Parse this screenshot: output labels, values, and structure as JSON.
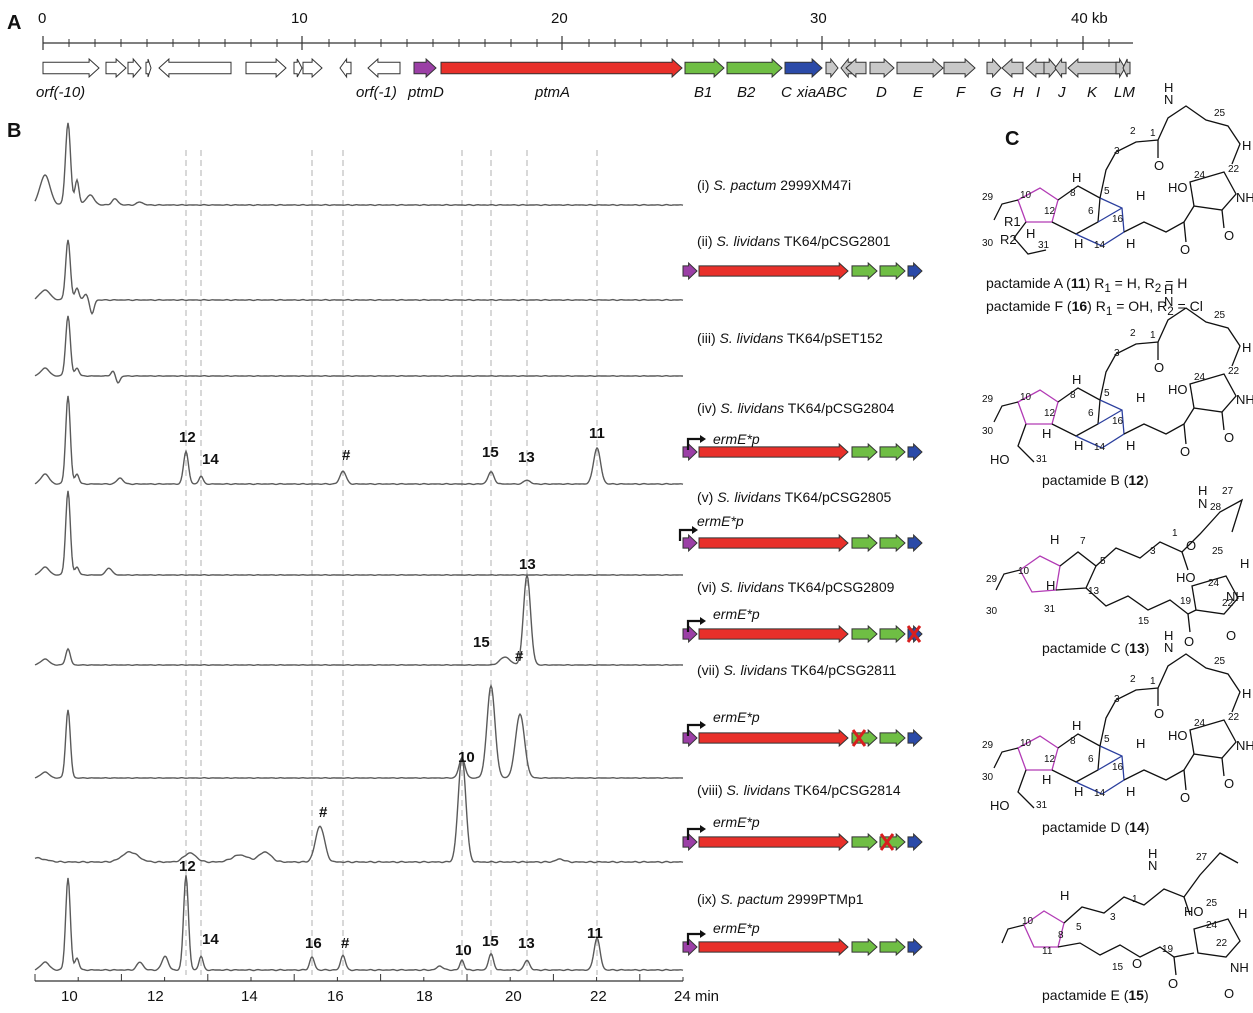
{
  "panels": {
    "a": "A",
    "b": "B",
    "c": "C"
  },
  "scale": {
    "ticks": [
      "0",
      "10",
      "20",
      "30",
      "40 kb"
    ]
  },
  "genes": [
    {
      "label": "orf(-10)"
    },
    {
      "label": "orf(-1)"
    },
    {
      "label": "ptmD"
    },
    {
      "label": "ptmA"
    },
    {
      "label": "B1"
    },
    {
      "label": "B2"
    },
    {
      "label": "C"
    },
    {
      "label": "xiaABC"
    },
    {
      "label": "D"
    },
    {
      "label": "E"
    },
    {
      "label": "F"
    },
    {
      "label": "G"
    },
    {
      "label": "H"
    },
    {
      "label": "I"
    },
    {
      "label": "J"
    },
    {
      "label": "K"
    },
    {
      "label": "LM"
    }
  ],
  "traces": [
    {
      "roman": "(i)",
      "species": "S. pactum",
      "strain": "2999XM47i"
    },
    {
      "roman": "(ii)",
      "species": "S. lividans",
      "strain": "TK64/pCSG2801"
    },
    {
      "roman": "(iii)",
      "species": "S. lividans",
      "strain": "TK64/pSET152"
    },
    {
      "roman": "(iv)",
      "species": "S. lividans",
      "strain": "TK64/pCSG2804"
    },
    {
      "roman": "(v)",
      "species": "S. lividans",
      "strain": "TK64/pCSG2805"
    },
    {
      "roman": "(vi)",
      "species": "S. lividans",
      "strain": "TK64/pCSG2809"
    },
    {
      "roman": "(vii)",
      "species": "S. lividans",
      "strain": "TK64/pCSG2811"
    },
    {
      "roman": "(viii)",
      "species": "S. lividans",
      "strain": "TK64/pCSG2814"
    },
    {
      "roman": "(ix)",
      "species": "S. pactum",
      "strain": "2999PTMp1"
    }
  ],
  "promoter": {
    "text": "ermE*p"
  },
  "peaks": {
    "p12": "12",
    "p14": "14",
    "p16": "16",
    "phash": "#",
    "p15": "15",
    "p13": "13",
    "p11": "11",
    "p10": "10"
  },
  "x_axis": {
    "ticks": [
      "10",
      "12",
      "14",
      "16",
      "18",
      "20",
      "22",
      "24 min"
    ]
  },
  "compounds": [
    {
      "line1": "pactamide A (",
      "num1": "11",
      "line1b": ") R",
      "sub1": "1",
      "r1": " = H, R",
      "sub2": "2",
      "r2": " = H"
    },
    {
      "line1": "pactamide F (",
      "num1": "16",
      "line1b": ") R",
      "sub1": "1",
      "r1": " = OH, R",
      "sub2": "2",
      "r2": " = Cl"
    },
    {
      "name": "pactamide B (",
      "num": "12",
      "end": ")"
    },
    {
      "name": "pactamide C (",
      "num": "13",
      "end": ")"
    },
    {
      "name": "pactamide D (",
      "num": "14",
      "end": ")"
    },
    {
      "name": "pactamide E (",
      "num": "15",
      "end": ")"
    }
  ],
  "atoms": {
    "H": "H",
    "N": "N",
    "O": "O",
    "HO": "HO",
    "NH": "NH",
    "R1": "R1",
    "R2": "R2",
    "Cl": "Cl",
    "n1": "1",
    "n2": "2",
    "n3": "3",
    "n5": "5",
    "n6": "6",
    "n7": "7",
    "n8": "8",
    "n10": "10",
    "n11": "11",
    "n12": "12",
    "n13": "13",
    "n14": "14",
    "n15": "15",
    "n16": "16",
    "n19": "19",
    "n22": "22",
    "n24": "24",
    "n25": "25",
    "n27": "27",
    "n28": "28",
    "n29": "29",
    "n30": "30",
    "n31": "31"
  },
  "colors": {
    "ptmD": "#9b3fa6",
    "ptmA": "#e8302a",
    "green": "#6fbe44",
    "blue": "#2b4aa8",
    "gray": "#c8c8c8",
    "trace": "#5a5a5a",
    "dash": "#b0b0b0",
    "cross": "#d81f1f",
    "magenta_ring": "#b23bb5",
    "blue_ring": "#2b3f9e"
  }
}
